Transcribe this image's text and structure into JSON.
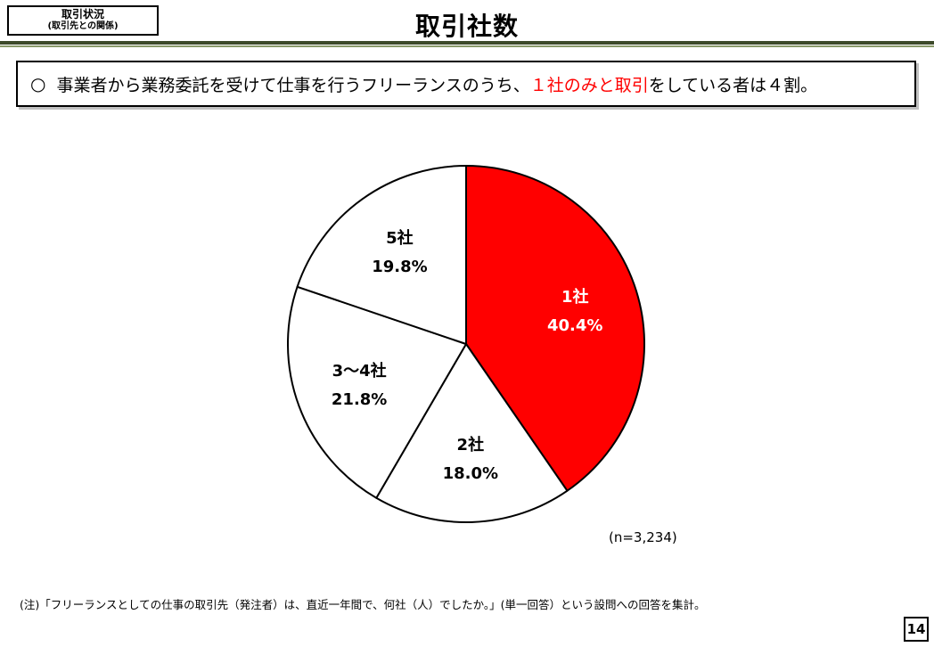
{
  "header": {
    "tag_line1": "取引状況",
    "tag_line2": "(取引先との関係)",
    "title": "取引社数"
  },
  "summary": {
    "bullet": "○",
    "text_before": "事業者から業務委託を受けて仕事を行うフリーランスのうち、",
    "highlight": "１社のみと取引",
    "text_after": "をしている者は４割。",
    "highlight_color": "#ff0000"
  },
  "chart_data": {
    "type": "pie",
    "title": "",
    "start": "12 o'clock",
    "direction": "clockwise",
    "slices": [
      {
        "label": "1社",
        "value": 40.4,
        "value_label": "40.4%",
        "color": "#ff0000",
        "text_color": "#ffffff"
      },
      {
        "label": "2社",
        "value": 18.0,
        "value_label": "18.0%",
        "color": "#ffffff",
        "text_color": "#000000"
      },
      {
        "label": "3～4社",
        "value": 21.8,
        "value_label": "21.8%",
        "color": "#ffffff",
        "text_color": "#000000"
      },
      {
        "label": "5社",
        "value": 19.8,
        "value_label": "19.8%",
        "color": "#ffffff",
        "text_color": "#000000"
      }
    ]
  },
  "sample_note": "(n=3,234)",
  "footnote": "(注)「フリーランスとしての仕事の取引先（発注者）は、直近一年間で、何社（人）でしたか。」(単一回答）という設問への回答を集計。",
  "page_number": "14"
}
